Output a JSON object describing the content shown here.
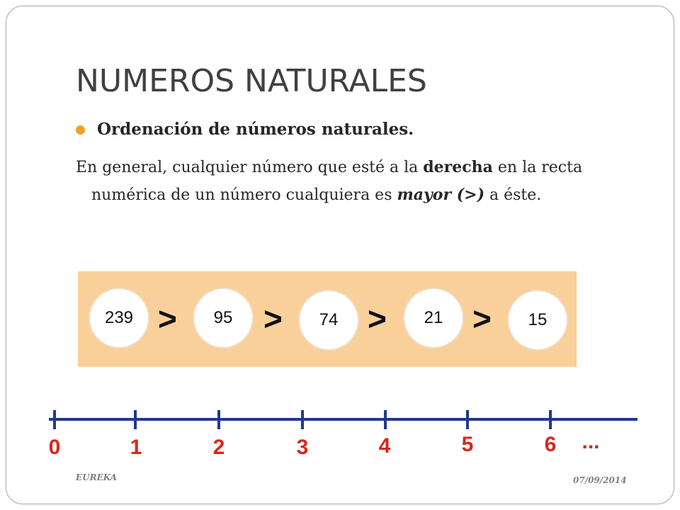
{
  "title": "NUMEROS NATURALES",
  "bullet": "Ordenación de números naturales.",
  "paragraph": {
    "p1": "En general, cualquier número que esté a la ",
    "bold1": "derecha",
    "p2": " en la recta",
    "p3": "numérica de un número cualquiera es ",
    "bold_italic": "mayor (>)",
    "p4": " a éste."
  },
  "comparison": {
    "numbers": [
      "239",
      "95",
      "74",
      "21",
      "15"
    ],
    "symbol": ">",
    "panel_color": "#f9d09a"
  },
  "number_line": {
    "labels": [
      "0",
      "1",
      "2",
      "3",
      "4",
      "5",
      "6"
    ],
    "ellipsis": "...",
    "line_color": "#1f3a8a",
    "label_color": "#d9261c"
  },
  "footer": {
    "left": "EUREKA",
    "right": "07/09/2014"
  },
  "colors": {
    "bullet": "#f0a22e",
    "title": "#404040"
  }
}
